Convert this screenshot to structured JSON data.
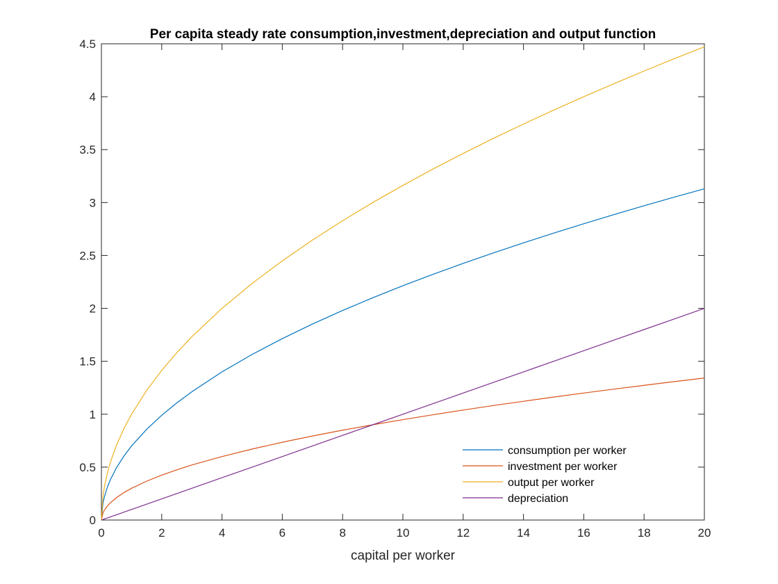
{
  "chart_data": {
    "type": "line",
    "title": "Per capita steady rate consumption,investment,depreciation and output function",
    "xlabel": "capital per worker",
    "ylabel": "",
    "xlim": [
      0,
      20
    ],
    "ylim": [
      0,
      4.5
    ],
    "xticks": [
      "0",
      "2",
      "4",
      "6",
      "8",
      "10",
      "12",
      "14",
      "16",
      "18",
      "20"
    ],
    "yticks": [
      "0",
      "0.5",
      "1",
      "1.5",
      "2",
      "2.5",
      "3",
      "3.5",
      "4",
      "4.5"
    ],
    "grid": false,
    "legend_position": "bottom-right",
    "x": [
      0,
      0.05,
      0.1,
      0.2,
      0.3,
      0.5,
      0.75,
      1,
      1.5,
      2,
      2.5,
      3,
      4,
      5,
      6,
      7,
      8,
      9,
      10,
      11,
      12,
      13,
      14,
      15,
      16,
      17,
      18,
      19,
      20
    ],
    "series": [
      {
        "name": "consumption per worker",
        "color": "#0072BD",
        "values": [
          0,
          0.157,
          0.221,
          0.313,
          0.383,
          0.495,
          0.606,
          0.7,
          0.857,
          0.99,
          1.107,
          1.212,
          1.4,
          1.565,
          1.714,
          1.852,
          1.98,
          2.1,
          2.214,
          2.322,
          2.425,
          2.524,
          2.619,
          2.711,
          2.8,
          2.886,
          2.97,
          3.051,
          3.13
        ]
      },
      {
        "name": "investment per worker",
        "color": "#D95319",
        "values": [
          0,
          0.067,
          0.095,
          0.134,
          0.164,
          0.212,
          0.26,
          0.3,
          0.367,
          0.424,
          0.474,
          0.52,
          0.6,
          0.671,
          0.735,
          0.794,
          0.849,
          0.9,
          0.949,
          0.995,
          1.039,
          1.082,
          1.122,
          1.162,
          1.2,
          1.237,
          1.273,
          1.308,
          1.342
        ]
      },
      {
        "name": "output per worker",
        "color": "#EDB120",
        "values": [
          0,
          0.224,
          0.316,
          0.447,
          0.548,
          0.707,
          0.866,
          1,
          1.225,
          1.414,
          1.581,
          1.732,
          2,
          2.236,
          2.449,
          2.646,
          2.828,
          3,
          3.162,
          3.317,
          3.464,
          3.606,
          3.742,
          3.873,
          4,
          4.123,
          4.243,
          4.359,
          4.472
        ]
      },
      {
        "name": "depreciation",
        "color": "#7E2F8E",
        "values": [
          0,
          0.005,
          0.01,
          0.02,
          0.03,
          0.05,
          0.075,
          0.1,
          0.15,
          0.2,
          0.25,
          0.3,
          0.4,
          0.5,
          0.6,
          0.7,
          0.8,
          0.9,
          1,
          1.1,
          1.2,
          1.3,
          1.4,
          1.5,
          1.6,
          1.7,
          1.8,
          1.9,
          2
        ]
      }
    ]
  }
}
